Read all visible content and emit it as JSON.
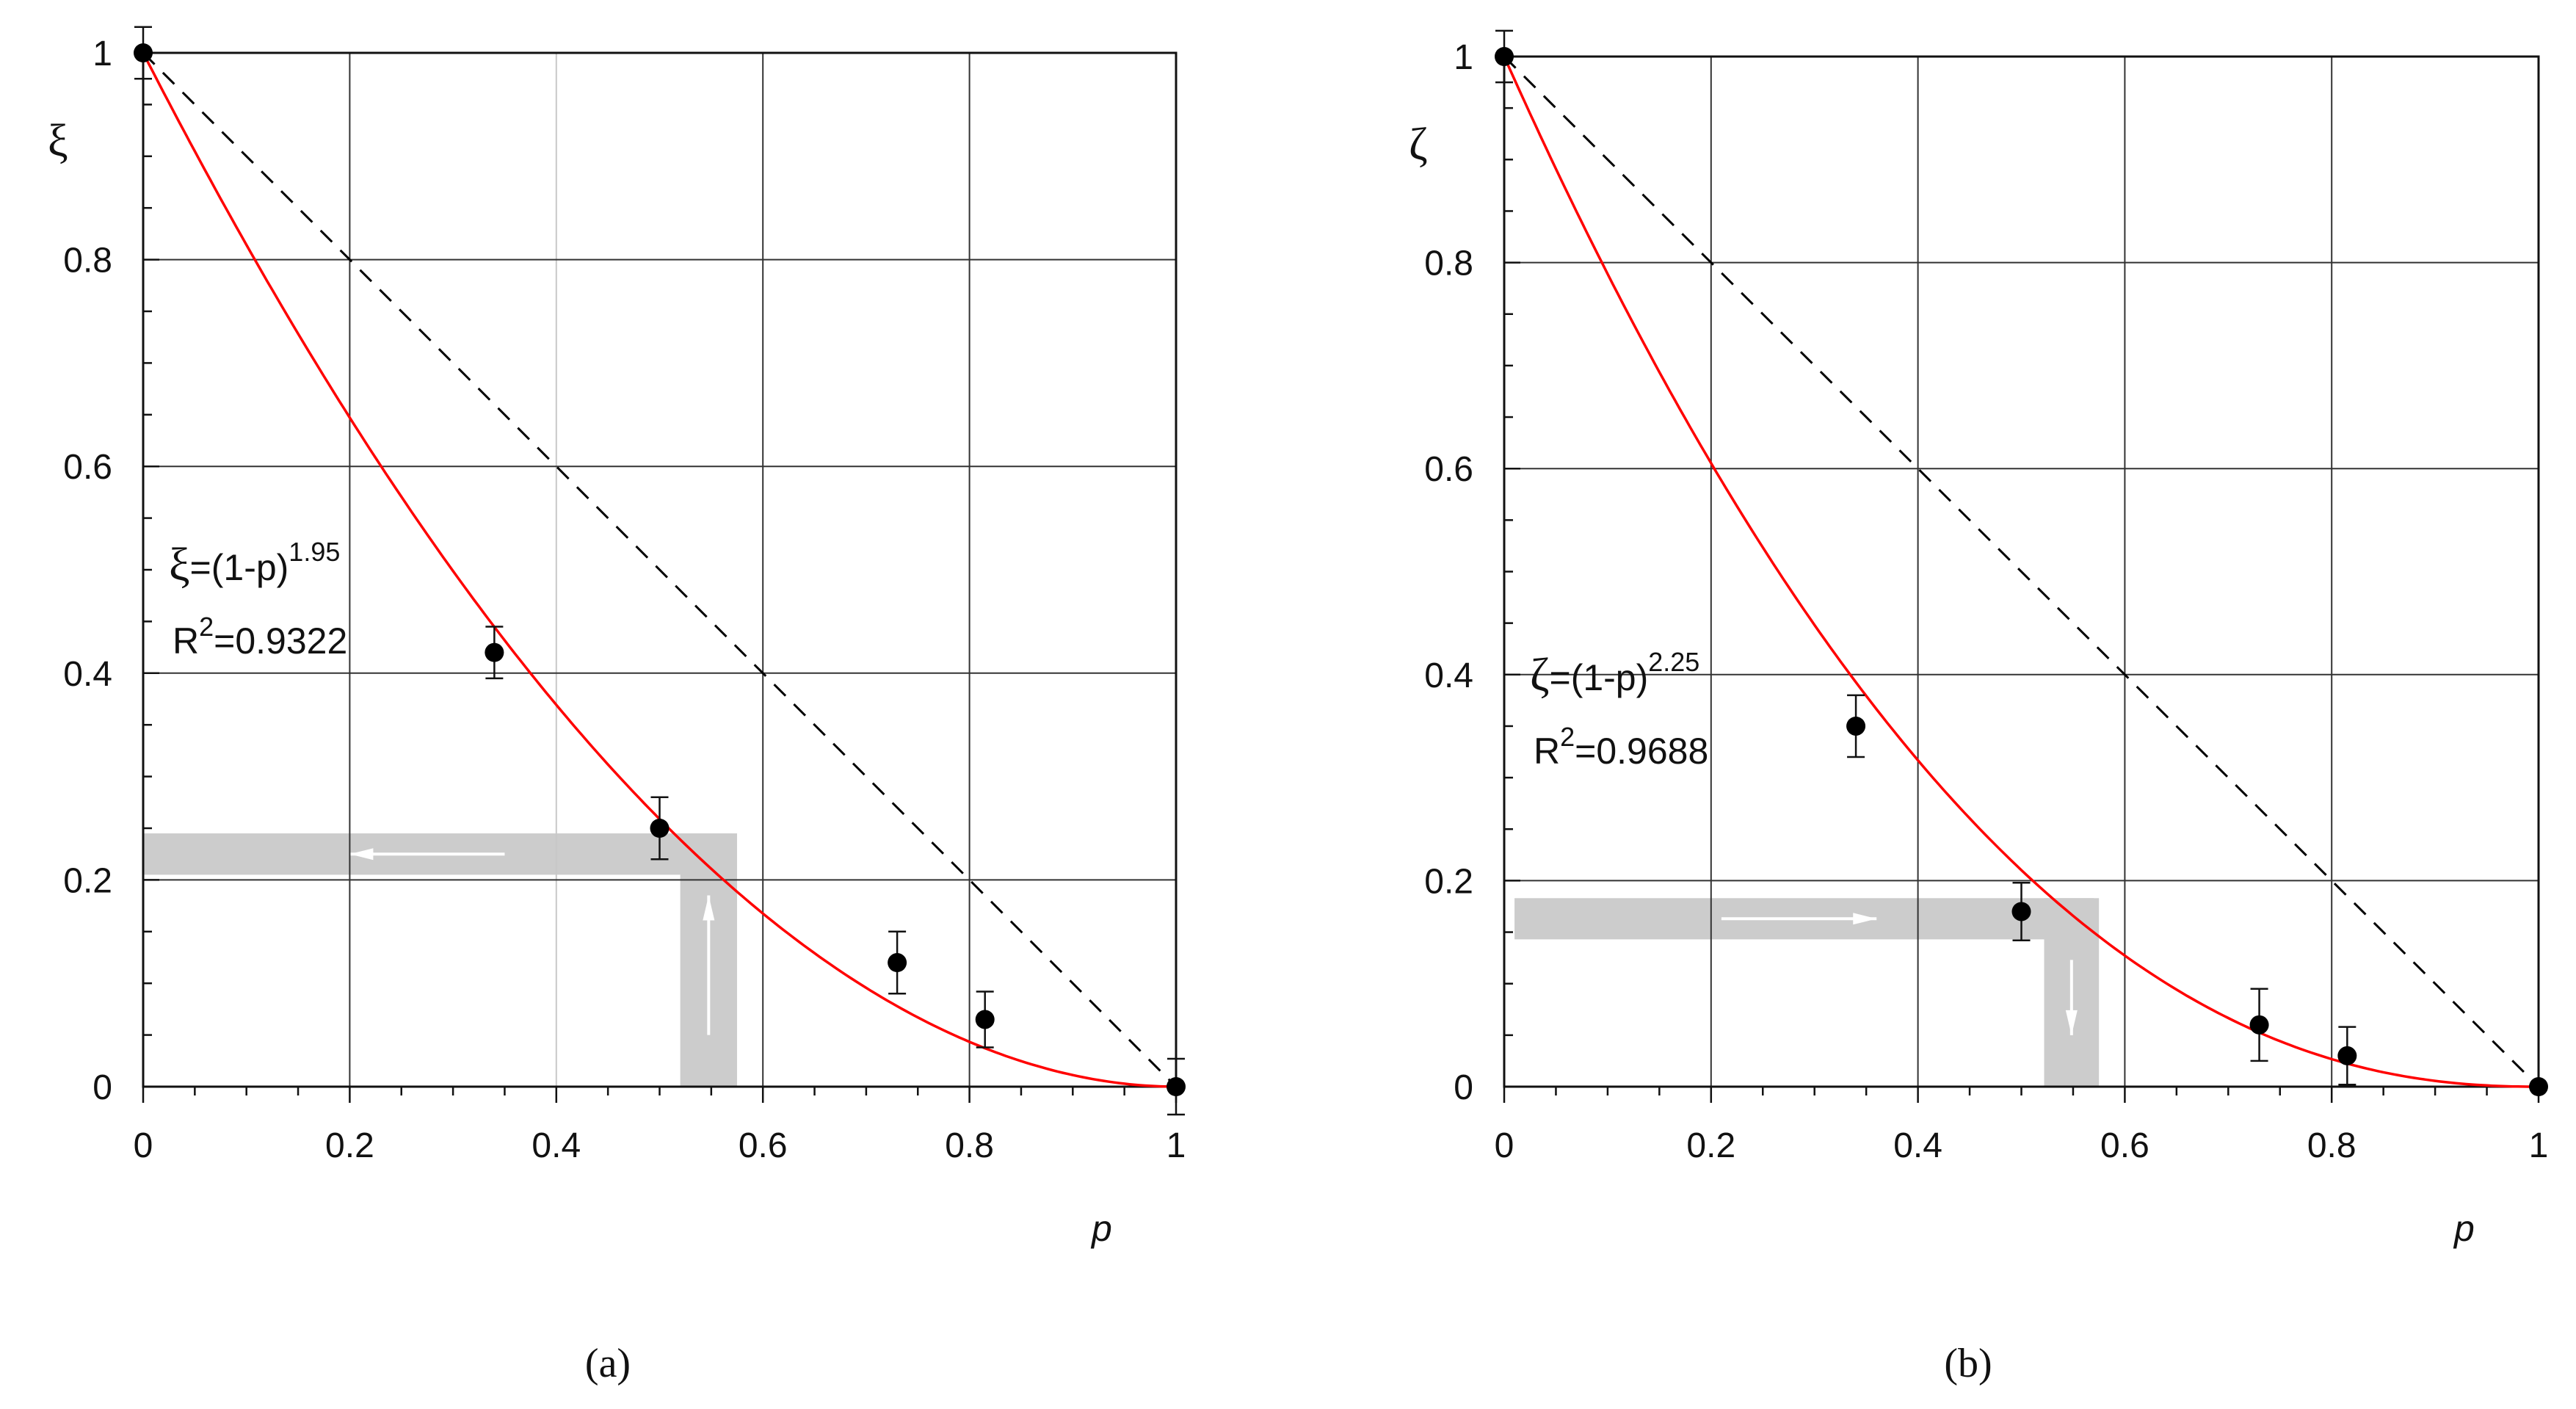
{
  "chart_data": [
    {
      "type": "scatter",
      "panel_label": "(a)",
      "ylabel": "ξ",
      "xlabel": "p",
      "xlim": [
        0,
        1
      ],
      "ylim": [
        0,
        1
      ],
      "x_ticks": [
        0,
        0.2,
        0.4,
        0.6,
        0.8,
        1
      ],
      "y_ticks": [
        0,
        0.2,
        0.4,
        0.6,
        0.8,
        1
      ],
      "x_tick_labels": [
        "0",
        "0.2",
        "0.4",
        "0.6",
        "0.8",
        "1"
      ],
      "y_tick_labels": [
        "0",
        "0.2",
        "0.4",
        "0.6",
        "0.8",
        "1"
      ],
      "grid": true,
      "points": [
        {
          "x": 0,
          "y": 1.0,
          "err": 0.025
        },
        {
          "x": 0.34,
          "y": 0.42,
          "err": 0.025
        },
        {
          "x": 0.5,
          "y": 0.25,
          "err": 0.03
        },
        {
          "x": 0.73,
          "y": 0.12,
          "err": 0.03
        },
        {
          "x": 0.815,
          "y": 0.065,
          "err": 0.027
        },
        {
          "x": 1,
          "y": 0.0,
          "err": 0.027
        }
      ],
      "fit": {
        "base": "ξ",
        "eq_rhs": "=(1-p)",
        "exponent": 1.95,
        "exponent_label": "1.95",
        "r2_label": "R",
        "r2_sup": "2",
        "r2_value": "=0.9322",
        "color": "#ff0000"
      },
      "reference_line": {
        "from": [
          0,
          1
        ],
        "to": [
          1,
          0
        ],
        "style": "dashed",
        "color": "#000000"
      },
      "highlight": {
        "h_band_y": [
          0.205,
          0.245
        ],
        "h_band_x": [
          0,
          0.57
        ],
        "v_band_x": [
          0.52,
          0.575
        ],
        "v_band_y": [
          0,
          0.245
        ],
        "h_arrow": "left",
        "v_arrow": "up",
        "color": "#cccccc"
      }
    },
    {
      "type": "scatter",
      "panel_label": "(b)",
      "ylabel": "ζ",
      "xlabel": "p",
      "xlim": [
        0,
        1
      ],
      "ylim": [
        0,
        1
      ],
      "x_ticks": [
        0,
        0.2,
        0.4,
        0.6,
        0.8,
        1
      ],
      "y_ticks": [
        0,
        0.2,
        0.4,
        0.6,
        0.8,
        1
      ],
      "x_tick_labels": [
        "0",
        "0.2",
        "0.4",
        "0.6",
        "0.8",
        "1"
      ],
      "y_tick_labels": [
        "0",
        "0.2",
        "0.4",
        "0.6",
        "0.8",
        "1"
      ],
      "grid": true,
      "points": [
        {
          "x": 0,
          "y": 1.0,
          "err": 0.025
        },
        {
          "x": 0.34,
          "y": 0.35,
          "err": 0.03
        },
        {
          "x": 0.5,
          "y": 0.17,
          "err": 0.028
        },
        {
          "x": 0.73,
          "y": 0.06,
          "err": 0.035
        },
        {
          "x": 0.815,
          "y": 0.03,
          "err": 0.028
        },
        {
          "x": 1,
          "y": 0.0,
          "err": 0.0
        }
      ],
      "fit": {
        "base": "ζ",
        "eq_rhs": "=(1-p)",
        "exponent": 2.25,
        "exponent_label": "2.25",
        "r2_label": "R",
        "r2_sup": "2",
        "r2_value": "=0.9688",
        "color": "#ff0000"
      },
      "reference_line": {
        "from": [
          0,
          1
        ],
        "to": [
          1,
          0
        ],
        "style": "dashed",
        "color": "#000000"
      },
      "highlight": {
        "h_band_y": [
          0.143,
          0.183
        ],
        "h_band_x": [
          0.01,
          0.57
        ],
        "v_band_x": [
          0.522,
          0.575
        ],
        "v_band_y": [
          0,
          0.183
        ],
        "h_arrow": "right",
        "v_arrow": "down",
        "color": "#cccccc"
      }
    }
  ]
}
